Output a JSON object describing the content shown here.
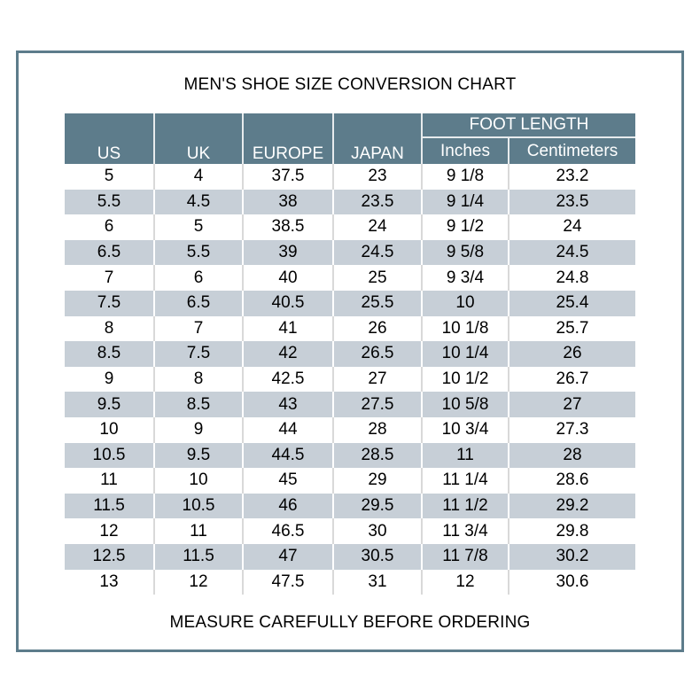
{
  "page": {
    "title": "MEN'S SHOE SIZE CONVERSION CHART",
    "footer_note": "MEASURE CAREFULLY BEFORE ORDERING"
  },
  "colors": {
    "header_bg": "#5d7c8b",
    "frame_border": "#5d7c8b",
    "alt_row_bg": "#c7cfd7",
    "row_bg": "#ffffff",
    "header_text": "#ffffff",
    "body_text": "#000000",
    "divider_on_white": "#d9d9d9",
    "divider_on_blue": "#ffffff"
  },
  "chart_data": {
    "type": "table",
    "title": "MEN'S SHOE SIZE CONVERSION CHART",
    "footer": "MEASURE CAREFULLY BEFORE ORDERING",
    "column_group": {
      "label": "FOOT LENGTH",
      "spans": [
        "Inches",
        "Centimeters"
      ]
    },
    "columns": [
      "US",
      "UK",
      "EUROPE",
      "JAPAN",
      "Inches",
      "Centimeters"
    ],
    "rows": [
      [
        "5",
        "4",
        "37.5",
        "23",
        "9 1/8",
        "23.2"
      ],
      [
        "5.5",
        "4.5",
        "38",
        "23.5",
        "9 1/4",
        "23.5"
      ],
      [
        "6",
        "5",
        "38.5",
        "24",
        "9 1/2",
        "24"
      ],
      [
        "6.5",
        "5.5",
        "39",
        "24.5",
        "9 5/8",
        "24.5"
      ],
      [
        "7",
        "6",
        "40",
        "25",
        "9 3/4",
        "24.8"
      ],
      [
        "7.5",
        "6.5",
        "40.5",
        "25.5",
        "10",
        "25.4"
      ],
      [
        "8",
        "7",
        "41",
        "26",
        "10 1/8",
        "25.7"
      ],
      [
        "8.5",
        "7.5",
        "42",
        "26.5",
        "10 1/4",
        "26"
      ],
      [
        "9",
        "8",
        "42.5",
        "27",
        "10 1/2",
        "26.7"
      ],
      [
        "9.5",
        "8.5",
        "43",
        "27.5",
        "10 5/8",
        "27"
      ],
      [
        "10",
        "9",
        "44",
        "28",
        "10 3/4",
        "27.3"
      ],
      [
        "10.5",
        "9.5",
        "44.5",
        "28.5",
        "11",
        "28"
      ],
      [
        "11",
        "10",
        "45",
        "29",
        "11 1/4",
        "28.6"
      ],
      [
        "11.5",
        "10.5",
        "46",
        "29.5",
        "11 1/2",
        "29.2"
      ],
      [
        "12",
        "11",
        "46.5",
        "30",
        "11 3/4",
        "29.8"
      ],
      [
        "12.5",
        "11.5",
        "47",
        "30.5",
        "11 7/8",
        "30.2"
      ],
      [
        "13",
        "12",
        "47.5",
        "31",
        "12",
        "30.6"
      ]
    ]
  }
}
